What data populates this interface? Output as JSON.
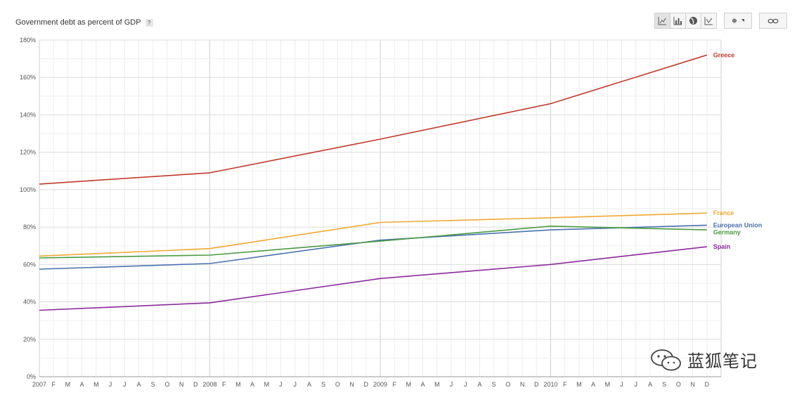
{
  "header": {
    "title": "Government debt as percent of GDP",
    "help": "?"
  },
  "toolbar": {
    "buttons": [
      {
        "icon": "line-chart-icon"
      },
      {
        "icon": "bar-chart-icon"
      },
      {
        "icon": "globe-icon"
      },
      {
        "icon": "scatter-chart-icon"
      },
      {
        "icon": "gear-icon"
      },
      {
        "icon": "link-icon"
      }
    ]
  },
  "watermark": {
    "icon": "wechat-icon",
    "text": "蓝狐笔记"
  },
  "chart_data": {
    "type": "line",
    "title": "Government debt as percent of GDP",
    "xlabel": "",
    "ylabel": "",
    "ylim": [
      0,
      180
    ],
    "yticks": [
      "0%",
      "20%",
      "40%",
      "60%",
      "80%",
      "100%",
      "120%",
      "140%",
      "160%",
      "180%"
    ],
    "xlim": [
      "2007-01",
      "2010-12"
    ],
    "xtick_labels": [
      "2007",
      "F",
      "M",
      "A",
      "M",
      "J",
      "J",
      "A",
      "S",
      "O",
      "N",
      "D",
      "2008",
      "F",
      "M",
      "A",
      "M",
      "J",
      "J",
      "A",
      "S",
      "O",
      "N",
      "D",
      "2009",
      "F",
      "M",
      "A",
      "M",
      "J",
      "J",
      "A",
      "S",
      "O",
      "N",
      "D",
      "2010",
      "F",
      "M",
      "A",
      "M",
      "J",
      "J",
      "A",
      "S",
      "O",
      "N",
      "D"
    ],
    "x": [
      "2007-01",
      "2008-01",
      "2009-01",
      "2010-01",
      "2010-12"
    ],
    "grid": true,
    "legend": "line-end labels",
    "series": [
      {
        "name": "Greece",
        "color": "#c0392b",
        "values": [
          103,
          109,
          127,
          146,
          172
        ]
      },
      {
        "name": "France",
        "color": "#f0a830",
        "values": [
          64.5,
          68.5,
          82.5,
          85,
          87.5
        ]
      },
      {
        "name": "European Union",
        "color": "#4a72b0",
        "values": [
          57.5,
          60.5,
          73,
          78.5,
          81
        ]
      },
      {
        "name": "Germany",
        "color": "#4a9a42",
        "values": [
          63.5,
          65,
          72.5,
          80.5,
          78.5
        ]
      },
      {
        "name": "Spain",
        "color": "#8b2a9c",
        "values": [
          35.5,
          39.5,
          52.5,
          60,
          69.5
        ]
      }
    ]
  }
}
